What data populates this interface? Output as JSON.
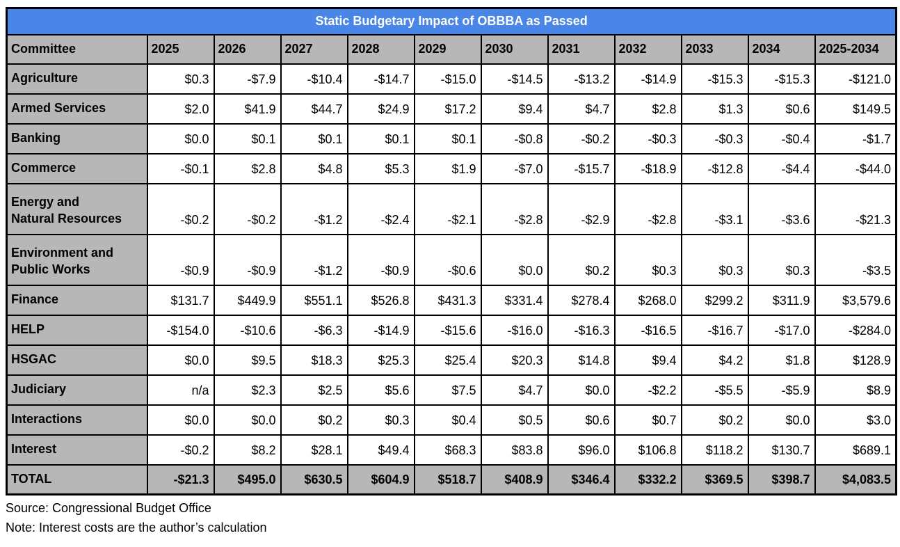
{
  "chart_data": {
    "type": "table",
    "title": "Static Budgetary Impact of OBBBA as Passed",
    "columns": [
      "Committee",
      "2025",
      "2026",
      "2027",
      "2028",
      "2029",
      "2030",
      "2031",
      "2032",
      "2033",
      "2034",
      "2025-2034"
    ],
    "rows": [
      {
        "label": "Agriculture",
        "tall": false,
        "total": false,
        "values": [
          "$0.3",
          "-$7.9",
          "-$10.4",
          "-$14.7",
          "-$15.0",
          "-$14.5",
          "-$13.2",
          "-$14.9",
          "-$15.3",
          "-$15.3",
          "-$121.0"
        ]
      },
      {
        "label": "Armed Services",
        "tall": false,
        "total": false,
        "values": [
          "$2.0",
          "$41.9",
          "$44.7",
          "$24.9",
          "$17.2",
          "$9.4",
          "$4.7",
          "$2.8",
          "$1.3",
          "$0.6",
          "$149.5"
        ]
      },
      {
        "label": "Banking",
        "tall": false,
        "total": false,
        "values": [
          "$0.0",
          "$0.1",
          "$0.1",
          "$0.1",
          "$0.1",
          "-$0.8",
          "-$0.2",
          "-$0.3",
          "-$0.3",
          "-$0.4",
          "-$1.7"
        ]
      },
      {
        "label": "Commerce",
        "tall": false,
        "total": false,
        "values": [
          "-$0.1",
          "$2.8",
          "$4.8",
          "$5.3",
          "$1.9",
          "-$7.0",
          "-$15.7",
          "-$18.9",
          "-$12.8",
          "-$4.4",
          "-$44.0"
        ]
      },
      {
        "label": "Energy and\nNatural Resources",
        "tall": true,
        "total": false,
        "values": [
          "-$0.2",
          "-$0.2",
          "-$1.2",
          "-$2.4",
          "-$2.1",
          "-$2.8",
          "-$2.9",
          "-$2.8",
          "-$3.1",
          "-$3.6",
          "-$21.3"
        ]
      },
      {
        "label": "Environment and\nPublic Works",
        "tall": true,
        "total": false,
        "values": [
          "-$0.9",
          "-$0.9",
          "-$1.2",
          "-$0.9",
          "-$0.6",
          "$0.0",
          "$0.2",
          "$0.3",
          "$0.3",
          "$0.3",
          "-$3.5"
        ]
      },
      {
        "label": "Finance",
        "tall": false,
        "total": false,
        "values": [
          "$131.7",
          "$449.9",
          "$551.1",
          "$526.8",
          "$431.3",
          "$331.4",
          "$278.4",
          "$268.0",
          "$299.2",
          "$311.9",
          "$3,579.6"
        ]
      },
      {
        "label": "HELP",
        "tall": false,
        "total": false,
        "values": [
          "-$154.0",
          "-$10.6",
          "-$6.3",
          "-$14.9",
          "-$15.6",
          "-$16.0",
          "-$16.3",
          "-$16.5",
          "-$16.7",
          "-$17.0",
          "-$284.0"
        ]
      },
      {
        "label": "HSGAC",
        "tall": false,
        "total": false,
        "values": [
          "$0.0",
          "$9.5",
          "$18.3",
          "$25.3",
          "$25.4",
          "$20.3",
          "$14.8",
          "$9.4",
          "$4.2",
          "$1.8",
          "$128.9"
        ]
      },
      {
        "label": "Judiciary",
        "tall": false,
        "total": false,
        "values": [
          "n/a",
          "$2.3",
          "$2.5",
          "$5.6",
          "$7.5",
          "$4.7",
          "$0.0",
          "-$2.2",
          "-$5.5",
          "-$5.9",
          "$8.9"
        ]
      },
      {
        "label": "Interactions",
        "tall": false,
        "total": false,
        "values": [
          "$0.0",
          "$0.0",
          "$0.2",
          "$0.3",
          "$0.4",
          "$0.5",
          "$0.6",
          "$0.7",
          "$0.2",
          "$0.0",
          "$3.0"
        ]
      },
      {
        "label": "Interest",
        "tall": false,
        "total": false,
        "values": [
          "-$0.2",
          "$8.2",
          "$28.1",
          "$49.4",
          "$68.3",
          "$83.8",
          "$96.0",
          "$106.8",
          "$118.2",
          "$130.7",
          "$689.1"
        ]
      },
      {
        "label": "TOTAL",
        "tall": false,
        "total": true,
        "values": [
          "-$21.3",
          "$495.0",
          "$630.5",
          "$604.9",
          "$518.7",
          "$408.9",
          "$346.4",
          "$332.2",
          "$369.5",
          "$398.7",
          "$4,083.5"
        ]
      }
    ],
    "layout": {
      "legend": "none",
      "grid": "all-cell-borders"
    }
  },
  "colors": {
    "title_bg": "#4a86e8",
    "title_text": "#ffffff",
    "header_bg": "#b7b7b7",
    "total_row_bg": "#b7b7b7",
    "cell_bg": "#ffffff",
    "border": "#000000"
  },
  "footer": {
    "source": "Source: Congressional Budget Office",
    "note": "Note: Interest costs are the author’s calculation"
  }
}
